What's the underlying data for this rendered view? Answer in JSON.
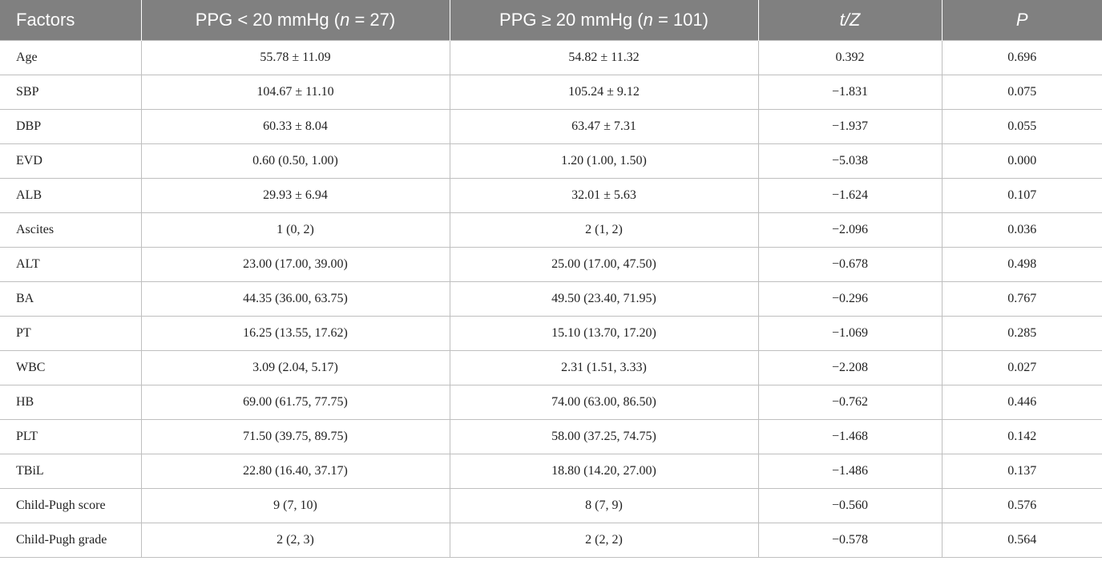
{
  "table": {
    "headers": {
      "factors": "Factors",
      "group1": {
        "pre": "PPG < 20 mmHg (",
        "n": "n",
        "post": " = 27)"
      },
      "group2": {
        "pre": "PPG ≥ 20 mmHg (",
        "n": "n",
        "post": " = 101)"
      },
      "stat": "t/Z",
      "p": "P"
    },
    "rows": [
      {
        "factor": "Age",
        "g1": "55.78 ± 11.09",
        "g2": "54.82 ± 11.32",
        "tz": "0.392",
        "p": "0.696"
      },
      {
        "factor": "SBP",
        "g1": "104.67 ± 11.10",
        "g2": "105.24 ± 9.12",
        "tz": "−1.831",
        "p": "0.075"
      },
      {
        "factor": "DBP",
        "g1": "60.33 ± 8.04",
        "g2": "63.47 ± 7.31",
        "tz": "−1.937",
        "p": "0.055"
      },
      {
        "factor": "EVD",
        "g1": "0.60 (0.50, 1.00)",
        "g2": "1.20 (1.00, 1.50)",
        "tz": "−5.038",
        "p": "0.000"
      },
      {
        "factor": "ALB",
        "g1": "29.93 ± 6.94",
        "g2": "32.01 ± 5.63",
        "tz": "−1.624",
        "p": "0.107"
      },
      {
        "factor": "Ascites",
        "g1": "1 (0, 2)",
        "g2": "2 (1, 2)",
        "tz": "−2.096",
        "p": "0.036"
      },
      {
        "factor": "ALT",
        "g1": "23.00 (17.00, 39.00)",
        "g2": "25.00 (17.00, 47.50)",
        "tz": "−0.678",
        "p": "0.498"
      },
      {
        "factor": "BA",
        "g1": "44.35 (36.00, 63.75)",
        "g2": "49.50 (23.40, 71.95)",
        "tz": "−0.296",
        "p": "0.767"
      },
      {
        "factor": "PT",
        "g1": "16.25 (13.55, 17.62)",
        "g2": "15.10 (13.70, 17.20)",
        "tz": "−1.069",
        "p": "0.285"
      },
      {
        "factor": "WBC",
        "g1": "3.09 (2.04, 5.17)",
        "g2": "2.31 (1.51, 3.33)",
        "tz": "−2.208",
        "p": "0.027"
      },
      {
        "factor": "HB",
        "g1": "69.00 (61.75, 77.75)",
        "g2": "74.00 (63.00, 86.50)",
        "tz": "−0.762",
        "p": "0.446"
      },
      {
        "factor": "PLT",
        "g1": "71.50 (39.75, 89.75)",
        "g2": "58.00 (37.25, 74.75)",
        "tz": "−1.468",
        "p": "0.142"
      },
      {
        "factor": "TBiL",
        "g1": "22.80 (16.40, 37.17)",
        "g2": "18.80 (14.20, 27.00)",
        "tz": "−1.486",
        "p": "0.137"
      },
      {
        "factor": "Child-Pugh score",
        "g1": "9 (7, 10)",
        "g2": "8 (7, 9)",
        "tz": "−0.560",
        "p": "0.576"
      },
      {
        "factor": "Child-Pugh grade",
        "g1": "2 (2, 3)",
        "g2": "2 (2, 2)",
        "tz": "−0.578",
        "p": "0.564"
      }
    ]
  },
  "colors": {
    "header_bg": "#808080",
    "header_text": "#ffffff",
    "grid": "#bfbfbf"
  }
}
